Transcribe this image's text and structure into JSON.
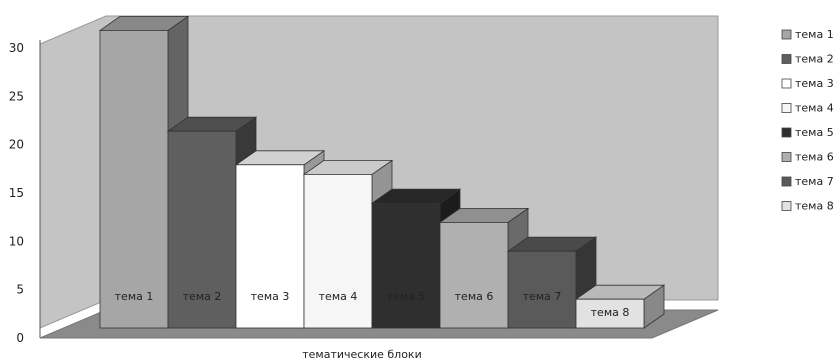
{
  "chart_data": {
    "type": "bar",
    "three_d": true,
    "title": "",
    "xlabel": "тематические блоки",
    "ylabel": "",
    "ylim": [
      0,
      30
    ],
    "yticks": [
      0,
      5,
      10,
      15,
      20,
      25,
      30
    ],
    "grid": false,
    "legend_position": "right",
    "categories": [
      "тема 1",
      "тема 2",
      "тема 3",
      "тема 4",
      "тема 5",
      "тема 6",
      "тема 7",
      "тема 8"
    ],
    "values": [
      31,
      20.5,
      17,
      16,
      13,
      11,
      8,
      3
    ],
    "series_colors": [
      "#a6a6a6",
      "#5f5f5f",
      "#ffffff",
      "#f6f6f6",
      "#2f2f2f",
      "#b0b0b0",
      "#5a5a5a",
      "#e2e2e2"
    ],
    "bar_label_colors": [
      "#222222",
      "#222222",
      "#222222",
      "#222222",
      "#222222",
      "#222222",
      "#222222",
      "#222222"
    ],
    "legend": [
      "тема 1",
      "тема 2",
      "тема 3",
      "тема 4",
      "тема 5",
      "тема 6",
      "тема 7",
      "тема 8"
    ],
    "wall_color": "#c4c4c4",
    "floor_color": "#8a8a8a"
  }
}
